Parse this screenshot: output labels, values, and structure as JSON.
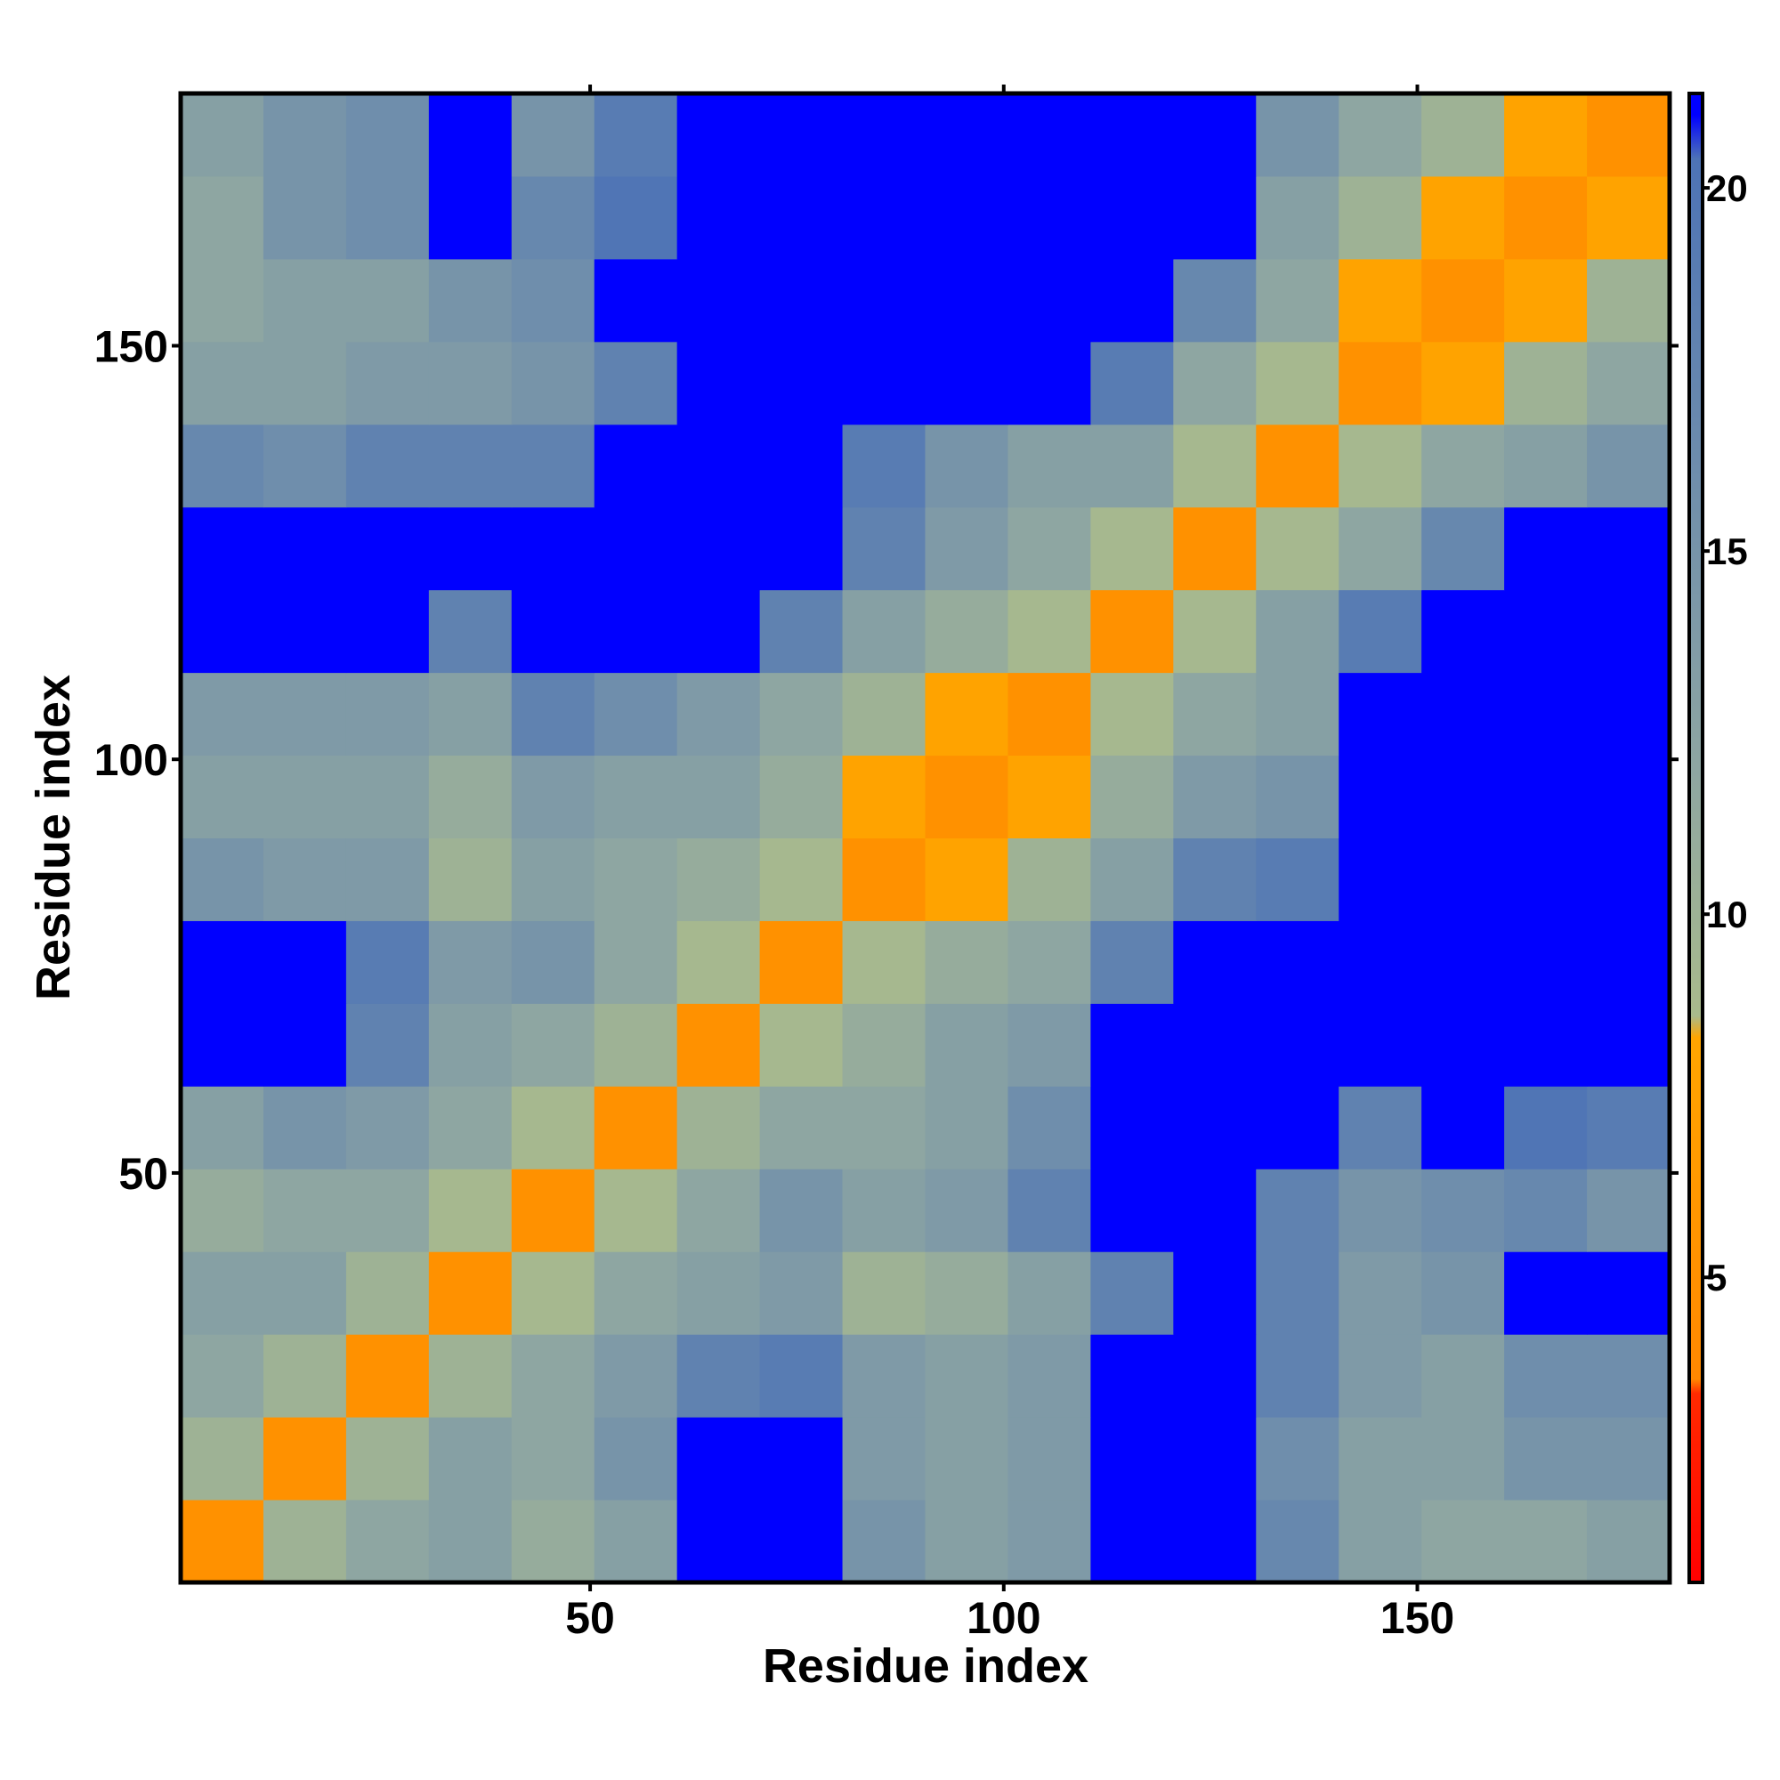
{
  "chart_data": {
    "type": "heatmap",
    "xlabel": "Residue index",
    "ylabel": "Residue index",
    "xbins": [
      0.5,
      10.5,
      20.5,
      30.5,
      40.5,
      50.5,
      60.5,
      70.5,
      80.5,
      90.5,
      100.5,
      110.5,
      120.5,
      130.5,
      140.5,
      150.5,
      160.5,
      170.5,
      180.5
    ],
    "ybins": [
      0.5,
      10.5,
      20.5,
      30.5,
      40.5,
      50.5,
      60.5,
      70.5,
      80.5,
      90.5,
      100.5,
      110.5,
      120.5,
      130.5,
      140.5,
      150.5,
      160.5,
      170.5,
      180.5
    ],
    "xlim": [
      0.5,
      180.5
    ],
    "ylim": [
      0.5,
      180.5
    ],
    "xticks": [
      50,
      100,
      150
    ],
    "yticks": [
      50,
      100,
      150
    ],
    "z": [
      [
        5,
        10,
        12,
        13,
        11,
        13,
        21,
        21,
        15,
        13,
        14,
        21,
        21,
        17,
        13,
        12,
        12,
        13
      ],
      [
        10,
        5,
        10,
        13,
        12,
        15,
        21,
        21,
        14,
        13,
        14,
        21,
        21,
        16,
        13,
        13,
        15,
        15
      ],
      [
        12,
        10,
        5,
        10,
        12,
        14,
        18,
        19,
        14,
        13,
        14,
        21,
        21,
        18,
        14,
        13,
        16,
        16
      ],
      [
        13,
        13,
        10,
        5,
        9,
        12,
        13,
        14,
        10,
        11,
        13,
        18,
        21,
        18,
        14,
        15,
        21,
        21
      ],
      [
        11,
        12,
        12,
        9,
        5,
        9,
        12,
        15,
        13,
        14,
        18,
        21,
        21,
        18,
        15,
        16,
        17,
        15
      ],
      [
        13,
        15,
        14,
        12,
        9,
        5,
        10,
        12,
        12,
        13,
        16,
        21,
        21,
        21,
        18,
        21,
        20,
        19
      ],
      [
        21,
        21,
        18,
        13,
        12,
        10,
        5,
        9,
        11,
        13,
        14,
        21,
        21,
        21,
        21,
        21,
        21,
        21
      ],
      [
        21,
        21,
        19,
        14,
        15,
        12,
        9,
        5,
        9,
        11,
        12,
        18,
        21,
        21,
        21,
        21,
        21,
        21
      ],
      [
        15,
        14,
        14,
        10,
        13,
        12,
        11,
        9,
        5,
        8,
        10,
        13,
        18,
        19,
        21,
        21,
        21,
        21
      ],
      [
        13,
        13,
        13,
        11,
        14,
        13,
        13,
        11,
        8,
        5,
        8,
        11,
        14,
        15,
        21,
        21,
        21,
        21
      ],
      [
        14,
        14,
        14,
        13,
        18,
        16,
        14,
        12,
        10,
        8,
        5,
        9,
        12,
        13,
        21,
        21,
        21,
        21
      ],
      [
        21,
        21,
        21,
        18,
        21,
        21,
        21,
        18,
        13,
        11,
        9,
        5,
        9,
        13,
        19,
        21,
        21,
        21
      ],
      [
        21,
        21,
        21,
        21,
        21,
        21,
        21,
        21,
        18,
        14,
        12,
        9,
        5,
        9,
        12,
        17,
        21,
        21
      ],
      [
        17,
        16,
        18,
        18,
        18,
        21,
        21,
        21,
        19,
        15,
        13,
        13,
        9,
        5,
        9,
        12,
        13,
        15
      ],
      [
        13,
        13,
        14,
        14,
        15,
        18,
        21,
        21,
        21,
        21,
        21,
        19,
        12,
        9,
        5,
        8,
        10,
        12
      ],
      [
        12,
        13,
        13,
        15,
        16,
        21,
        21,
        21,
        21,
        21,
        21,
        21,
        17,
        12,
        8,
        5,
        8,
        10
      ],
      [
        12,
        15,
        16,
        21,
        17,
        20,
        21,
        21,
        21,
        21,
        21,
        21,
        21,
        13,
        10,
        8,
        5,
        8
      ],
      [
        13,
        15,
        16,
        21,
        15,
        19,
        21,
        21,
        21,
        21,
        21,
        21,
        21,
        15,
        12,
        10,
        8,
        5
      ]
    ],
    "colorbar": {
      "lim": [
        0.8,
        21.3
      ],
      "ticks": [
        5,
        10,
        15,
        20
      ],
      "stops": [
        {
          "value": 0.8,
          "color": "#ff0000"
        },
        {
          "value": 3.4,
          "color": "#ff2a00"
        },
        {
          "value": 3.6,
          "color": "#ff8800"
        },
        {
          "value": 8.3,
          "color": "#ffa500"
        },
        {
          "value": 8.6,
          "color": "#a9ba8c"
        },
        {
          "value": 12,
          "color": "#8ea6a2"
        },
        {
          "value": 20.4,
          "color": "#4d73b6"
        },
        {
          "value": 21,
          "color": "#0000ff"
        },
        {
          "value": 21.3,
          "color": "#0000ff"
        }
      ]
    }
  }
}
